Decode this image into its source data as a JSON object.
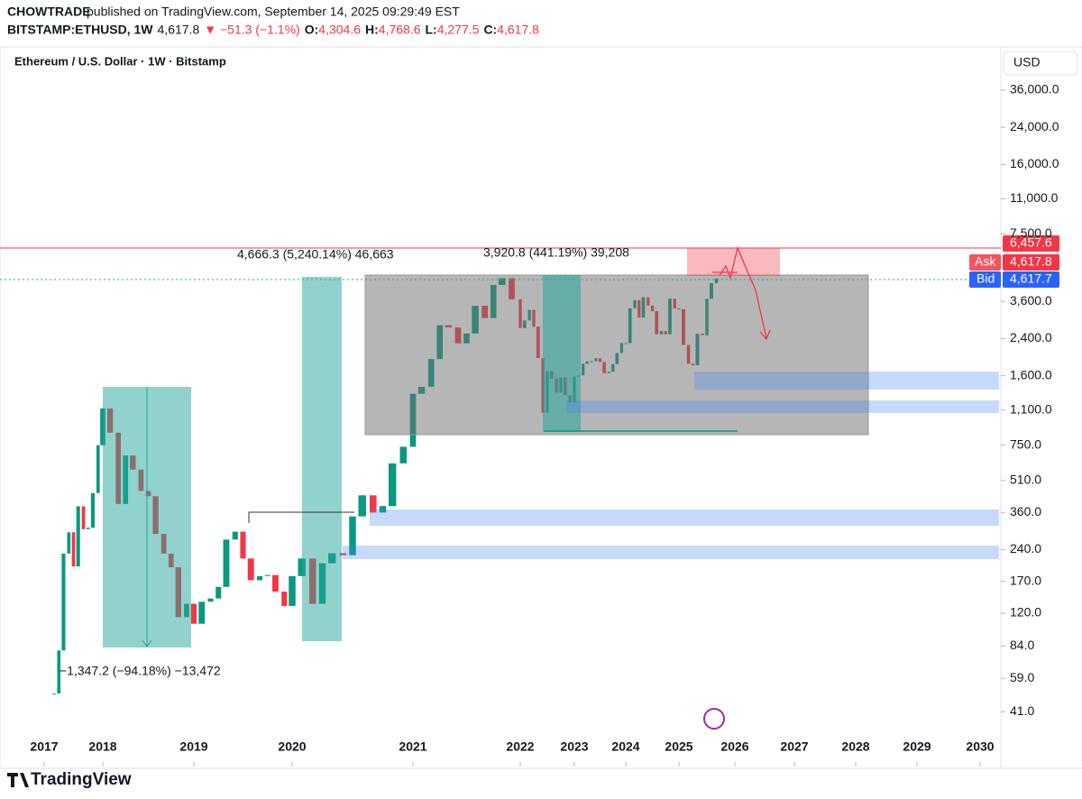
{
  "header": {
    "publisher": "CHOWTRADE",
    "published": "published on TradingView.com, September 14, 2025 09:29:49 EST",
    "symbol": "BITSTAMP:ETHUSD, 1W",
    "last": "4,617.8",
    "change": "▼ −51.3 (−1.1%)",
    "ohlc": [
      {
        "label": "O:",
        "value": "4,304.6"
      },
      {
        "label": "H:",
        "value": "4,768.6"
      },
      {
        "label": "L:",
        "value": "4,277.5"
      },
      {
        "label": "C:",
        "value": "4,617.8"
      }
    ]
  },
  "chart_data": {
    "type": "candlestick",
    "title": "Ethereum / U.S. Dollar · 1W · Bitstamp",
    "currency": "USD",
    "log_scale": true,
    "up_color": "#089981",
    "down_color": "#f23645",
    "x": [
      2017.17,
      2017.25,
      2017.33,
      2017.42,
      2017.5,
      2017.58,
      2017.67,
      2017.75,
      2017.83,
      2017.92,
      2018,
      2018.08,
      2018.17,
      2018.25,
      2018.33,
      2018.42,
      2018.5,
      2018.58,
      2018.67,
      2018.75,
      2018.83,
      2018.92,
      2019,
      2019.08,
      2019.17,
      2019.25,
      2019.33,
      2019.42,
      2019.5,
      2019.58,
      2019.67,
      2019.75,
      2019.83,
      2019.92,
      2020,
      2020.08,
      2020.17,
      2020.25,
      2020.33,
      2020.42,
      2020.5,
      2020.58,
      2020.67,
      2020.75,
      2020.83,
      2020.92,
      2021,
      2021.08,
      2021.17,
      2021.25,
      2021.33,
      2021.42,
      2021.5,
      2021.58,
      2021.67,
      2021.75,
      2021.83,
      2021.92,
      2022,
      2022.08,
      2022.17,
      2022.25,
      2022.33,
      2022.42,
      2022.5,
      2022.58,
      2022.67,
      2022.75,
      2022.83,
      2022.92,
      2023,
      2023.08,
      2023.17,
      2023.25,
      2023.33,
      2023.42,
      2023.5,
      2023.58,
      2023.67,
      2023.75,
      2023.83,
      2023.92,
      2024,
      2024.08,
      2024.17,
      2024.25,
      2024.33,
      2024.42,
      2024.5,
      2024.58,
      2024.67,
      2024.75,
      2024.83,
      2024.92,
      2025,
      2025.08,
      2025.17,
      2025.25,
      2025.33,
      2025.42,
      2025.5,
      2025.58,
      2025.67
    ],
    "values": [
      50,
      80,
      230,
      290,
      200,
      385,
      300,
      305,
      445,
      750,
      1120,
      860,
      395,
      670,
      575,
      455,
      430,
      285,
      230,
      198,
      115,
      133,
      107,
      136,
      141,
      160,
      268,
      292,
      218,
      172,
      180,
      182,
      152,
      130,
      180,
      218,
      133,
      207,
      231,
      226,
      345,
      434,
      360,
      386,
      615,
      737,
      1314,
      1418,
      1918,
      2772,
      2707,
      2275,
      2536,
      3430,
      3000,
      4300,
      4630,
      3680,
      2690,
      2920,
      3280,
      2730,
      1940,
      1070,
      1680,
      1550,
      1330,
      1570,
      1295,
      1196,
      1585,
      1605,
      1821,
      1870,
      1874,
      1934,
      1856,
      1645,
      1671,
      1815,
      2050,
      2282,
      2283,
      3340,
      3647,
      3015,
      3760,
      3435,
      3232,
      2513,
      2603,
      2513,
      3705,
      3332,
      3300,
      2237,
      1822,
      1794,
      2528,
      2486,
      3700,
      4390,
      4617.8
    ],
    "xlim": [
      2016.25,
      2030.33
    ],
    "xticks": [
      2017,
      2018,
      2019,
      2020,
      2021,
      2022,
      2023,
      2024,
      2025,
      2026,
      2027,
      2028,
      2029,
      2030
    ],
    "ylim": [
      23.7,
      56000
    ],
    "yticks": [
      {
        "value": 36000,
        "label": "36,000.0"
      },
      {
        "value": 24000,
        "label": "24,000.0"
      },
      {
        "value": 16000,
        "label": "16,000.0"
      },
      {
        "value": 11000,
        "label": "11,000.0"
      },
      {
        "value": 7500,
        "label": "7,500.0"
      },
      {
        "value": 3600,
        "label": "3,600.0"
      },
      {
        "value": 2400,
        "label": "2,400.0"
      },
      {
        "value": 1600,
        "label": "1,600.0"
      },
      {
        "value": 1100,
        "label": "1,100.0"
      },
      {
        "value": 750,
        "label": "750.0"
      },
      {
        "value": 510,
        "label": "510.0"
      },
      {
        "value": 360,
        "label": "360.0"
      },
      {
        "value": 240,
        "label": "240.0"
      },
      {
        "value": 170,
        "label": "170.0"
      },
      {
        "value": 120,
        "label": "120.0"
      },
      {
        "value": 84,
        "label": "84.0"
      },
      {
        "value": 59,
        "label": "59.0"
      },
      {
        "value": 41,
        "label": "41.0"
      }
    ],
    "annotations": [
      "4,666.3 (5,240.14%) 46,663",
      "3,920.8 (441.19%) 39,208",
      "−1,347.2 (−94.18%) −13,472"
    ],
    "price_tags": {
      "level": "6,457.6",
      "ask_label": "Ask",
      "ask": "4,617.8",
      "bid_label": "Bid",
      "bid": "4,617.7"
    }
  },
  "footer": {
    "brand": "TradingView"
  }
}
